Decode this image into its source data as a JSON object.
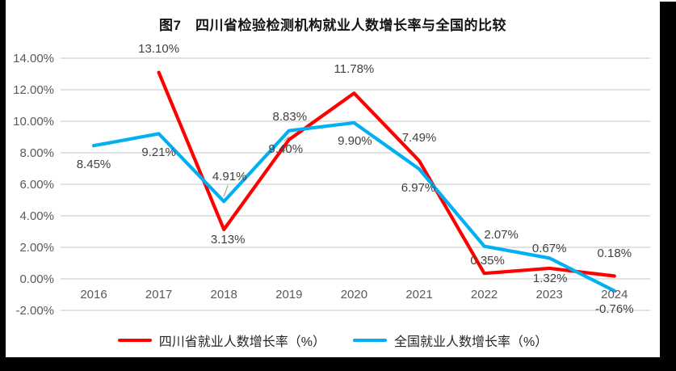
{
  "frame": {
    "background": "#FFFFFF",
    "edge_color": "#000000"
  },
  "chart_data": {
    "type": "line",
    "title": "图7　四川省检验检测机构就业人数增长率与全国的比较",
    "categories": [
      "2016",
      "2017",
      "2018",
      "2019",
      "2020",
      "2021",
      "2022",
      "2023",
      "2024"
    ],
    "y_axis": {
      "tick_labels": [
        "14.00%",
        "12.00%",
        "10.00%",
        "8.00%",
        "6.00%",
        "4.00%",
        "2.00%",
        "0.00%",
        "-2.00%"
      ],
      "tick_values": [
        14,
        12,
        10,
        8,
        6,
        4,
        2,
        0,
        -2
      ],
      "min": -2,
      "max": 14,
      "unit": "%"
    },
    "grid": true,
    "gridline_color": "#D9D9D9",
    "leader_line_color": "#A6A6A6",
    "legend_position": "bottom",
    "series": [
      {
        "name": "四川省就业人数增长率（%）",
        "color": "#FF0000",
        "values": [
          null,
          13.1,
          3.13,
          8.83,
          11.78,
          7.49,
          0.35,
          0.67,
          0.18
        ],
        "data_labels": [
          null,
          "13.10%",
          "3.13%",
          "8.83%",
          "11.78%",
          "7.49%",
          "0.35%",
          "0.67%",
          "0.18%"
        ],
        "label_offsets": [
          null,
          [
            0,
            -29
          ],
          [
            5,
            13
          ],
          [
            1,
            -28
          ],
          [
            0,
            -29
          ],
          [
            0,
            -28
          ],
          [
            4,
            -15
          ],
          [
            0,
            -24
          ],
          [
            0,
            -27
          ]
        ],
        "leader_lines": [
          false,
          false,
          false,
          false,
          false,
          false,
          false,
          false,
          false
        ]
      },
      {
        "name": "全国就业人数增长率（%）",
        "color": "#00B0F0",
        "values": [
          8.45,
          9.21,
          4.91,
          9.4,
          9.9,
          6.97,
          2.07,
          1.32,
          -0.76
        ],
        "data_labels": [
          "8.45%",
          "9.21%",
          "4.91%",
          "9.40%",
          "9.90%",
          "6.97%",
          "2.07%",
          "1.32%",
          "-0.76%"
        ],
        "label_offsets": [
          [
            0,
            24
          ],
          [
            0,
            24
          ],
          [
            7,
            -30
          ],
          [
            -4,
            23
          ],
          [
            1,
            23
          ],
          [
            -1,
            24
          ],
          [
            21,
            -14
          ],
          [
            1,
            26
          ],
          [
            0,
            23
          ]
        ],
        "leader_lines": [
          false,
          false,
          true,
          true,
          false,
          false,
          false,
          false,
          false
        ]
      }
    ]
  }
}
